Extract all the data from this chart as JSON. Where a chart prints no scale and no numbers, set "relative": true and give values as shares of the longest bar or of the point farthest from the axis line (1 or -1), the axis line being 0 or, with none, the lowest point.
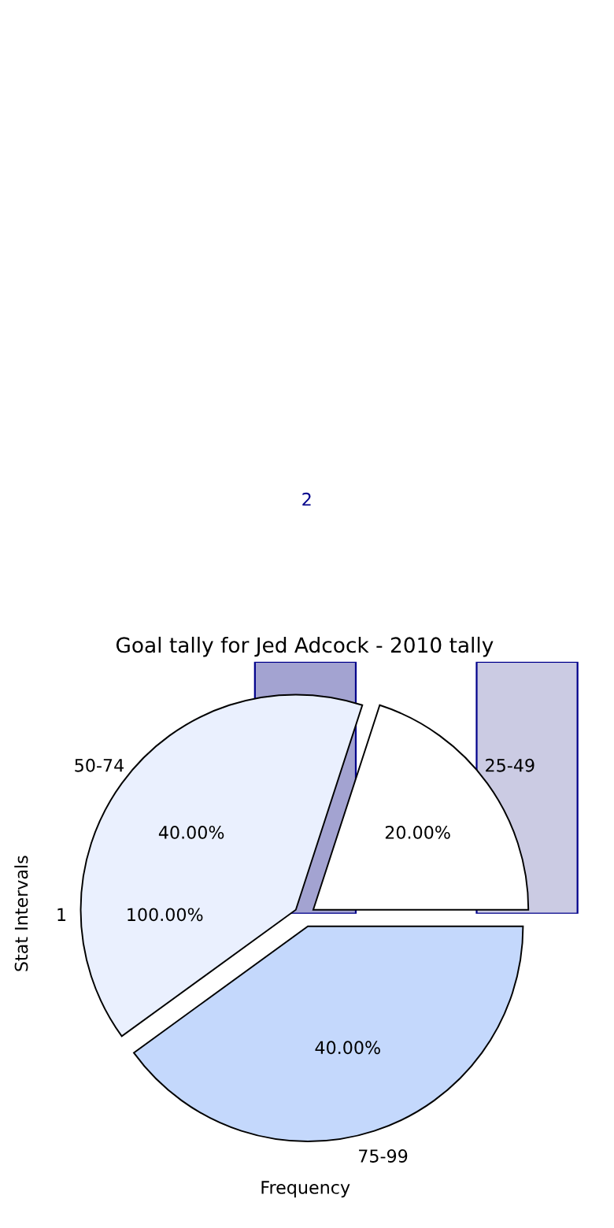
{
  "chart_data": [
    {
      "type": "bar",
      "categories": [
        null,
        null
      ],
      "values": [
        1,
        1
      ],
      "relative": true,
      "colors": [
        "#a3a3d1",
        "#cbcbe3"
      ],
      "xlabel": "Frequency",
      "ylabel": "Stat Intervals",
      "annotations": [
        "2"
      ]
    },
    {
      "type": "pie",
      "title": "Goal tally for Jed Adcock - 2010 tally",
      "categories": [
        "25-49",
        "50-74",
        "75-99"
      ],
      "values": [
        20,
        40,
        40
      ],
      "colors": [
        "#ffffff",
        "#eaf0fe",
        "#c4d8fc"
      ],
      "value_labels": [
        "20.00%",
        "40.00%",
        "40.00%"
      ],
      "annotations": [
        "1",
        "100.00%"
      ]
    }
  ]
}
